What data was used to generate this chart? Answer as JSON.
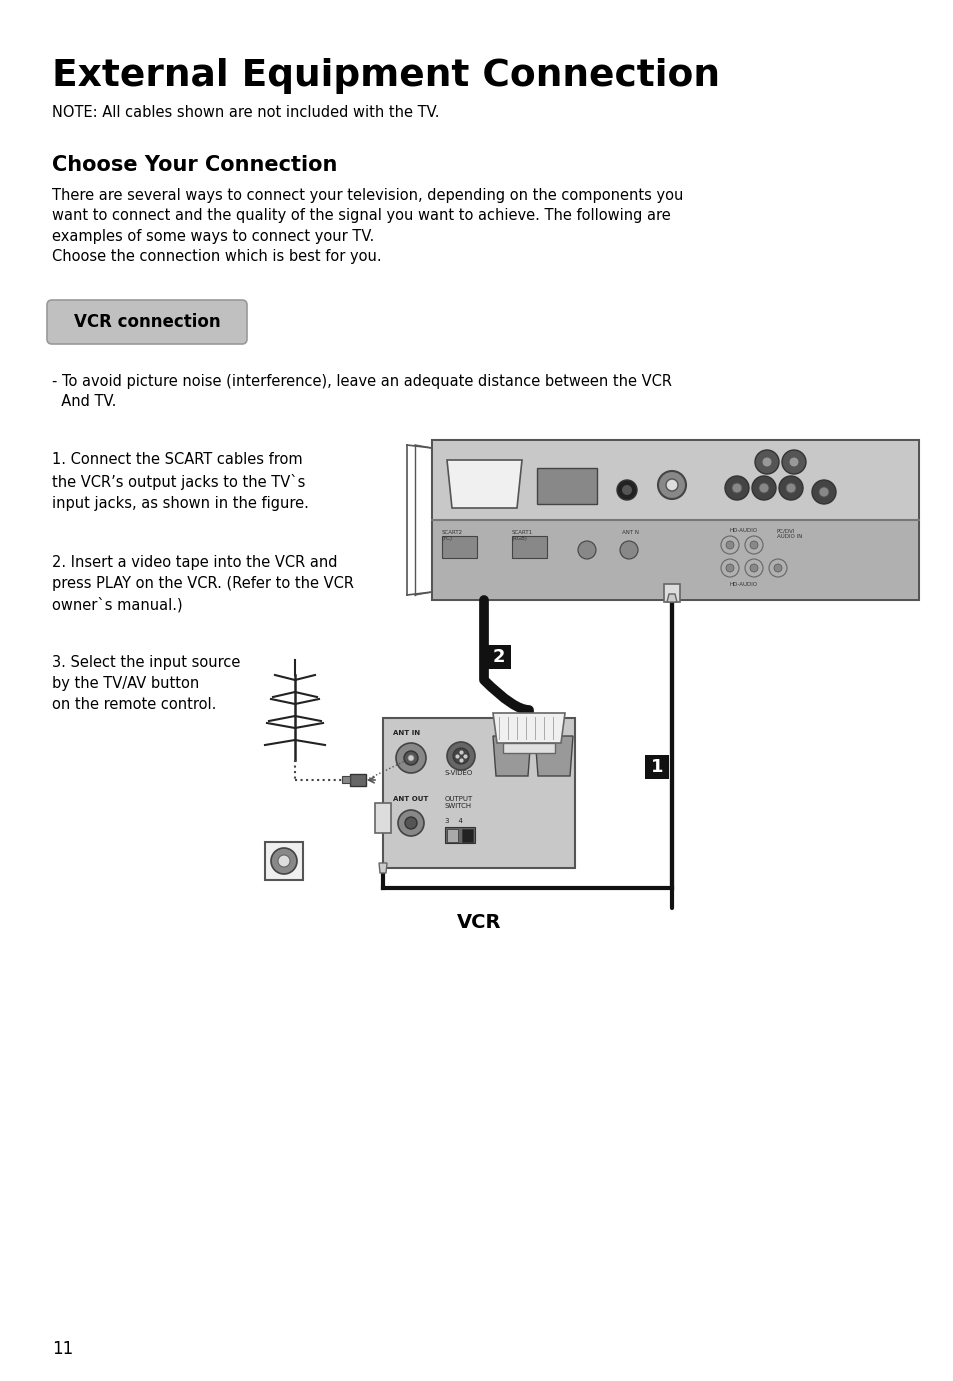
{
  "title": "External Equipment Connection",
  "note": "NOTE: All cables shown are not included with the TV.",
  "section_title": "Choose Your Connection",
  "section_body": "There are several ways to connect your television, depending on the components you\nwant to connect and the quality of the signal you want to achieve. The following are\nexamples of some ways to connect your TV.\nChoose the connection which is best for you.",
  "vcr_button": "VCR connection",
  "warning_text": "- To avoid picture noise (interference), leave an adequate distance between the VCR\n  And TV.",
  "step1": "1. Connect the SCART cables from\nthe VCR’s output jacks to the TV`s\ninput jacks, as shown in the figure.",
  "step2": "2. Insert a video tape into the VCR and\npress PLAY on the VCR. (Refer to the VCR\nowner`s manual.)",
  "step3": "3. Select the input source\nby the TV/AV button\non the remote control.",
  "vcr_label": "VCR",
  "page_number": "11",
  "bg_color": "#ffffff",
  "text_color": "#000000",
  "gray_bg": "#c8c8c8",
  "tv_gray": "#b8b8b8",
  "tv_gray2": "#cccccc",
  "vcr_gray": "#c8c8c8"
}
